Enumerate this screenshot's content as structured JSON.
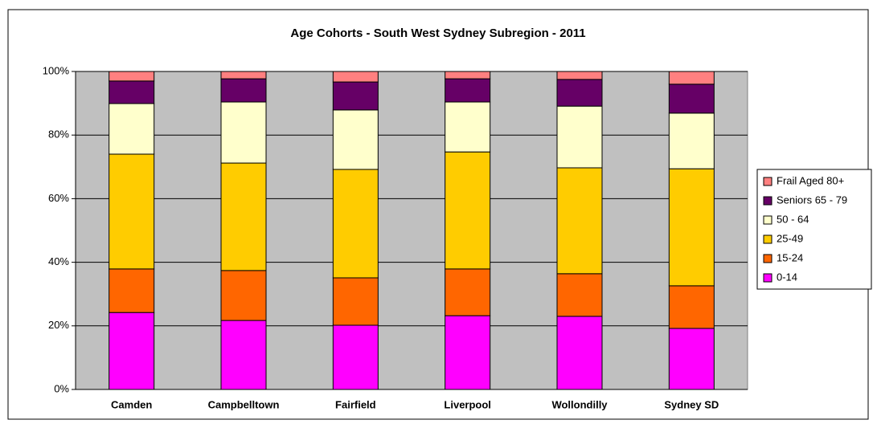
{
  "chart_data": {
    "type": "stacked_bar",
    "title": "Age Cohorts - South West Sydney Subregion - 2011",
    "categories": [
      "Camden",
      "Campbelltown",
      "Fairfield",
      "Liverpool",
      "Wollondilly",
      "Sydney SD"
    ],
    "series": [
      {
        "name": "0-14",
        "color": "#ff00ff",
        "values": [
          24.2,
          21.7,
          20.2,
          23.2,
          23.0,
          19.2
        ]
      },
      {
        "name": "15-24",
        "color": "#ff6600",
        "values": [
          13.7,
          15.7,
          14.9,
          14.7,
          13.4,
          13.4
        ]
      },
      {
        "name": "25-49",
        "color": "#ffcc00",
        "values": [
          36.1,
          33.8,
          34.1,
          36.8,
          33.3,
          36.8
        ]
      },
      {
        "name": "50 - 64",
        "color": "#ffffcc",
        "values": [
          15.9,
          19.2,
          18.7,
          15.7,
          19.4,
          17.5
        ]
      },
      {
        "name": "Seniors 65 - 79",
        "color": "#660066",
        "values": [
          7.1,
          7.3,
          8.8,
          7.3,
          8.4,
          9.1
        ]
      },
      {
        "name": "Frail Aged 80+",
        "color": "#ff8080",
        "values": [
          3.0,
          2.3,
          3.3,
          2.3,
          2.5,
          4.0
        ]
      }
    ],
    "ylim": [
      0,
      100
    ],
    "yticks": [
      {
        "value": 0,
        "label": "0%"
      },
      {
        "value": 20,
        "label": "20%"
      },
      {
        "value": 40,
        "label": "40%"
      },
      {
        "value": 60,
        "label": "60%"
      },
      {
        "value": 80,
        "label": "80%"
      },
      {
        "value": 100,
        "label": "100%"
      }
    ],
    "grid": true,
    "legend": "right"
  }
}
